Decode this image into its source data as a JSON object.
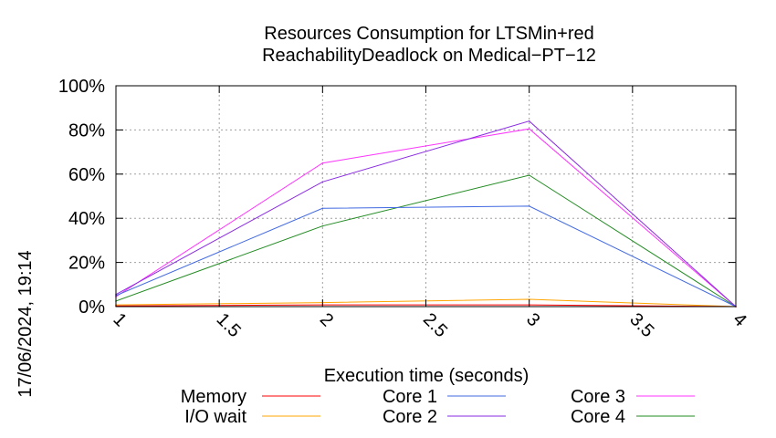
{
  "chart_data": {
    "type": "line",
    "title_lines": [
      "Resources Consumption for LTSMin+red",
      "ReachabilityDeadlock on Medical−PT−12"
    ],
    "xlabel": "Execution time (seconds)",
    "ylabel": "",
    "xlim": [
      1,
      4
    ],
    "ylim": [
      0,
      100
    ],
    "x_ticks": [
      {
        "value": 1,
        "label": "1"
      },
      {
        "value": 1.5,
        "label": "1.5"
      },
      {
        "value": 2,
        "label": "2"
      },
      {
        "value": 2.5,
        "label": "2.5"
      },
      {
        "value": 3,
        "label": "3"
      },
      {
        "value": 3.5,
        "label": "3.5"
      },
      {
        "value": 4,
        "label": "4"
      }
    ],
    "y_ticks": [
      {
        "value": 0,
        "label": "0%"
      },
      {
        "value": 20,
        "label": "20%"
      },
      {
        "value": 40,
        "label": "40%"
      },
      {
        "value": 60,
        "label": "60%"
      },
      {
        "value": 80,
        "label": "80%"
      },
      {
        "value": 100,
        "label": "100%"
      }
    ],
    "grid": true,
    "legend_position": "bottom",
    "timestamp": "17/06/2024, 19:14",
    "series": [
      {
        "name": "Memory",
        "color": "#ff0000",
        "x": [
          1,
          2,
          3,
          4
        ],
        "y": [
          0.3,
          0.8,
          0.8,
          0
        ]
      },
      {
        "name": "I/O wait",
        "color": "#ffa500",
        "x": [
          1,
          2,
          3,
          4
        ],
        "y": [
          0.8,
          1.8,
          3.3,
          0
        ]
      },
      {
        "name": "Core 1",
        "color": "#4169e1",
        "x": [
          1,
          2,
          3,
          4
        ],
        "y": [
          5,
          44.5,
          45.5,
          0
        ]
      },
      {
        "name": "Core 2",
        "color": "#8a2be2",
        "x": [
          1,
          2,
          3,
          4
        ],
        "y": [
          5.5,
          56.5,
          84,
          0
        ]
      },
      {
        "name": "Core 3",
        "color": "#ff33ff",
        "x": [
          1,
          2,
          3,
          4
        ],
        "y": [
          4.5,
          65,
          80.5,
          0
        ]
      },
      {
        "name": "Core 4",
        "color": "#228b22",
        "x": [
          1,
          2,
          3,
          4
        ],
        "y": [
          2.5,
          36.5,
          59.5,
          0
        ]
      }
    ]
  }
}
